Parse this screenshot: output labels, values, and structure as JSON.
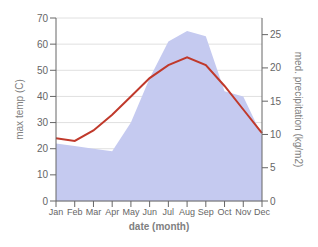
{
  "chart_data": {
    "type": "line",
    "xlabel": "date (month)",
    "ylabel": "max temp (C)",
    "y2label": "med. precipitation (kg/m2)",
    "categories": [
      "Jan",
      "Feb",
      "Mar",
      "Apr",
      "May",
      "Jun",
      "Jul",
      "Aug",
      "Sep",
      "Oct",
      "Nov",
      "Dec"
    ],
    "series": [
      {
        "type": "area",
        "color": "#c5caf0",
        "values": [
          22,
          21,
          20,
          19,
          30,
          47,
          61,
          65,
          63,
          42,
          40,
          25
        ]
      },
      {
        "type": "line",
        "color": "#c0392b",
        "values": [
          24,
          23,
          27,
          33,
          40,
          47,
          52,
          55,
          52,
          44,
          35,
          26
        ]
      }
    ],
    "ylim": [
      0,
      70
    ],
    "yticks": [
      0,
      10,
      20,
      30,
      40,
      50,
      60,
      70
    ],
    "y2lim": [
      0,
      27.5
    ],
    "y2ticks": [
      0,
      5,
      10,
      15,
      20,
      25
    ],
    "grid": true
  }
}
